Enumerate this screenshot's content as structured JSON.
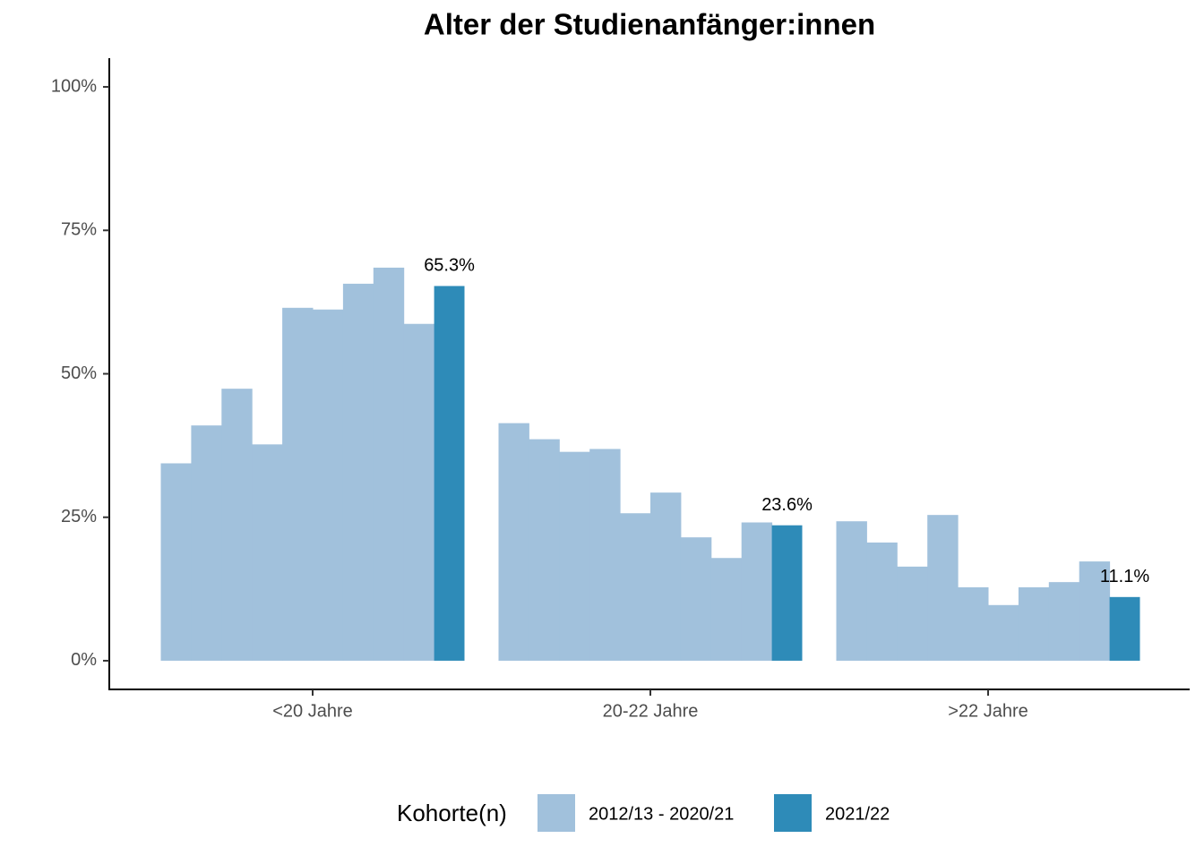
{
  "chart_data": {
    "type": "bar",
    "title": "Alter der Studienanfänger:innen",
    "categories": [
      "<20 Jahre",
      "20-22 Jahre",
      ">22 Jahre"
    ],
    "legend_title": "Kohorte(n)",
    "series": [
      {
        "name": "2012/13 - 2020/21",
        "color": "#a1c1dc",
        "values": [
          [
            34.4,
            41.0,
            47.4,
            37.7,
            61.5,
            61.2,
            65.7,
            68.5,
            58.7
          ],
          [
            41.4,
            38.6,
            36.4,
            36.9,
            25.7,
            29.3,
            21.5,
            17.9,
            24.1
          ],
          [
            24.3,
            20.6,
            16.4,
            25.4,
            12.8,
            9.7,
            12.8,
            13.7,
            17.3
          ]
        ]
      },
      {
        "name": "2021/22",
        "color": "#2e8bb8",
        "values": [
          65.3,
          23.6,
          11.1
        ],
        "value_labels": [
          "65.3%",
          "23.6%",
          "11.1%"
        ]
      }
    ],
    "ylim": [
      -5,
      105
    ],
    "yticks": [
      {
        "value": 0,
        "label": "0%"
      },
      {
        "value": 25,
        "label": "25%"
      },
      {
        "value": 50,
        "label": "50%"
      },
      {
        "value": 75,
        "label": "75%"
      },
      {
        "value": 100,
        "label": "100%"
      }
    ]
  }
}
